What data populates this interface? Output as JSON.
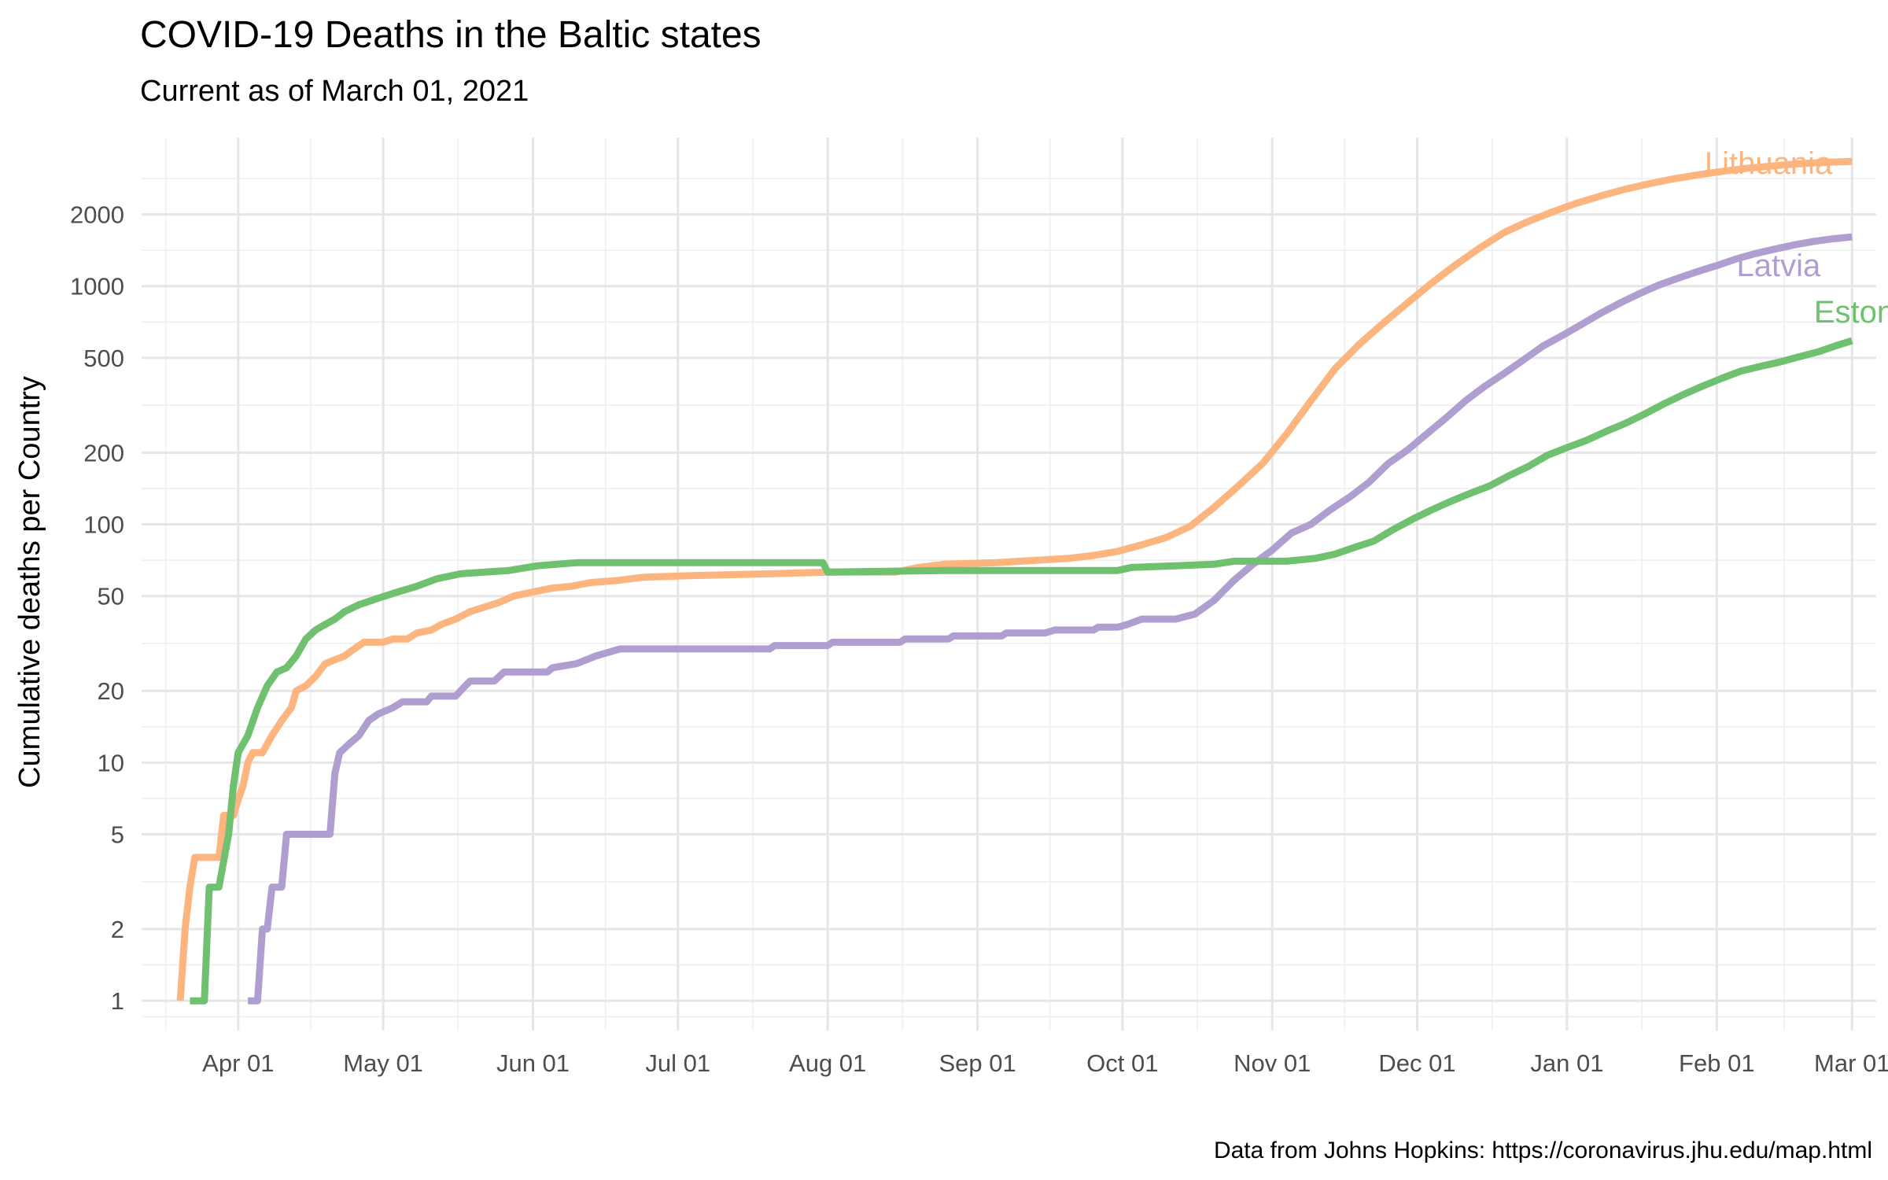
{
  "chart_data": {
    "type": "line",
    "title": "COVID-19 Deaths in the Baltic states",
    "subtitle": "Current as of March 01, 2021",
    "xlabel": "",
    "ylabel": "Cumulative deaths per Country",
    "caption": "Data from Johns Hopkins: https://coronavirus.jhu.edu/map.html",
    "y_scale": "log10",
    "ylim": [
      0.75,
      4200
    ],
    "xlim": [
      "2020-03-12",
      "2021-03-06"
    ],
    "grid": true,
    "legend": "direct labels at line ends",
    "x_ticks": [
      {
        "date": "2020-04-01",
        "label": "Apr 01"
      },
      {
        "date": "2020-05-01",
        "label": "May 01"
      },
      {
        "date": "2020-06-01",
        "label": "Jun 01"
      },
      {
        "date": "2020-07-01",
        "label": "Jul 01"
      },
      {
        "date": "2020-08-01",
        "label": "Aug 01"
      },
      {
        "date": "2020-09-01",
        "label": "Sep 01"
      },
      {
        "date": "2020-10-01",
        "label": "Oct 01"
      },
      {
        "date": "2020-11-01",
        "label": "Nov 01"
      },
      {
        "date": "2020-12-01",
        "label": "Dec 01"
      },
      {
        "date": "2021-01-01",
        "label": "Jan 01"
      },
      {
        "date": "2021-02-01",
        "label": "Feb 01"
      },
      {
        "date": "2021-03-01",
        "label": "Mar 01"
      }
    ],
    "y_ticks": [
      {
        "value": 1,
        "label": "1"
      },
      {
        "value": 2,
        "label": "2"
      },
      {
        "value": 5,
        "label": "5"
      },
      {
        "value": 10,
        "label": "10"
      },
      {
        "value": 20,
        "label": "20"
      },
      {
        "value": 50,
        "label": "50"
      },
      {
        "value": 100,
        "label": "100"
      },
      {
        "value": 200,
        "label": "200"
      },
      {
        "value": 500,
        "label": "500"
      },
      {
        "value": 1000,
        "label": "1000"
      },
      {
        "value": 2000,
        "label": "2000"
      }
    ],
    "series": [
      {
        "name": "Lithuania",
        "color": "#FDB57F",
        "points": [
          [
            "2020-03-20",
            1
          ],
          [
            "2020-03-21",
            2
          ],
          [
            "2020-03-22",
            3
          ],
          [
            "2020-03-23",
            4
          ],
          [
            "2020-03-28",
            4
          ],
          [
            "2020-03-29",
            6
          ],
          [
            "2020-03-31",
            6
          ],
          [
            "2020-04-01",
            7
          ],
          [
            "2020-04-02",
            8
          ],
          [
            "2020-04-03",
            10
          ],
          [
            "2020-04-04",
            11
          ],
          [
            "2020-04-06",
            11
          ],
          [
            "2020-04-08",
            13
          ],
          [
            "2020-04-10",
            15
          ],
          [
            "2020-04-12",
            17
          ],
          [
            "2020-04-13",
            20
          ],
          [
            "2020-04-15",
            21
          ],
          [
            "2020-04-17",
            23
          ],
          [
            "2020-04-19",
            26
          ],
          [
            "2020-04-21",
            27
          ],
          [
            "2020-04-23",
            28
          ],
          [
            "2020-04-25",
            30
          ],
          [
            "2020-04-27",
            32
          ],
          [
            "2020-05-01",
            32
          ],
          [
            "2020-05-03",
            33
          ],
          [
            "2020-05-06",
            33
          ],
          [
            "2020-05-08",
            35
          ],
          [
            "2020-05-11",
            36
          ],
          [
            "2020-05-13",
            38
          ],
          [
            "2020-05-16",
            40
          ],
          [
            "2020-05-19",
            43
          ],
          [
            "2020-05-22",
            45
          ],
          [
            "2020-05-25",
            47
          ],
          [
            "2020-05-28",
            50
          ],
          [
            "2020-06-01",
            52
          ],
          [
            "2020-06-05",
            54
          ],
          [
            "2020-06-09",
            55
          ],
          [
            "2020-06-13",
            57
          ],
          [
            "2020-06-18",
            58
          ],
          [
            "2020-06-24",
            60
          ],
          [
            "2020-07-05",
            61
          ],
          [
            "2020-07-20",
            62
          ],
          [
            "2020-08-01",
            63
          ],
          [
            "2020-08-15",
            63
          ],
          [
            "2020-08-20",
            66
          ],
          [
            "2020-08-25",
            68
          ],
          [
            "2020-09-05",
            69
          ],
          [
            "2020-09-10",
            70
          ],
          [
            "2020-09-20",
            72
          ],
          [
            "2020-09-25",
            74
          ],
          [
            "2020-09-30",
            77
          ],
          [
            "2020-10-05",
            82
          ],
          [
            "2020-10-10",
            88
          ],
          [
            "2020-10-15",
            98
          ],
          [
            "2020-10-20",
            118
          ],
          [
            "2020-10-25",
            145
          ],
          [
            "2020-10-30",
            180
          ],
          [
            "2020-11-04",
            240
          ],
          [
            "2020-11-09",
            330
          ],
          [
            "2020-11-14",
            450
          ],
          [
            "2020-11-19",
            570
          ],
          [
            "2020-11-24",
            700
          ],
          [
            "2020-11-29",
            850
          ],
          [
            "2020-12-04",
            1030
          ],
          [
            "2020-12-09",
            1230
          ],
          [
            "2020-12-14",
            1450
          ],
          [
            "2020-12-19",
            1680
          ],
          [
            "2020-12-24",
            1870
          ],
          [
            "2020-12-29",
            2050
          ],
          [
            "2021-01-03",
            2230
          ],
          [
            "2021-01-08",
            2390
          ],
          [
            "2021-01-13",
            2550
          ],
          [
            "2021-01-18",
            2690
          ],
          [
            "2021-01-23",
            2820
          ],
          [
            "2021-01-28",
            2930
          ],
          [
            "2021-02-02",
            3030
          ],
          [
            "2021-02-07",
            3120
          ],
          [
            "2021-02-12",
            3190
          ],
          [
            "2021-02-17",
            3250
          ],
          [
            "2021-02-22",
            3300
          ],
          [
            "2021-03-01",
            3340
          ]
        ]
      },
      {
        "name": "Latvia",
        "color": "#B09ED1",
        "points": [
          [
            "2020-04-03",
            1
          ],
          [
            "2020-04-05",
            1
          ],
          [
            "2020-04-06",
            2
          ],
          [
            "2020-04-07",
            2
          ],
          [
            "2020-04-08",
            3
          ],
          [
            "2020-04-10",
            3
          ],
          [
            "2020-04-11",
            5
          ],
          [
            "2020-04-20",
            5
          ],
          [
            "2020-04-21",
            9
          ],
          [
            "2020-04-22",
            11
          ],
          [
            "2020-04-24",
            12
          ],
          [
            "2020-04-26",
            13
          ],
          [
            "2020-04-28",
            15
          ],
          [
            "2020-04-30",
            16
          ],
          [
            "2020-05-03",
            17
          ],
          [
            "2020-05-05",
            18
          ],
          [
            "2020-05-10",
            18
          ],
          [
            "2020-05-11",
            19
          ],
          [
            "2020-05-16",
            19
          ],
          [
            "2020-05-18",
            21
          ],
          [
            "2020-05-19",
            22
          ],
          [
            "2020-05-24",
            22
          ],
          [
            "2020-05-26",
            24
          ],
          [
            "2020-06-04",
            24
          ],
          [
            "2020-06-05",
            25
          ],
          [
            "2020-06-10",
            26
          ],
          [
            "2020-06-14",
            28
          ],
          [
            "2020-06-19",
            30
          ],
          [
            "2020-07-20",
            30
          ],
          [
            "2020-07-21",
            31
          ],
          [
            "2020-08-01",
            31
          ],
          [
            "2020-08-02",
            32
          ],
          [
            "2020-08-16",
            32
          ],
          [
            "2020-08-17",
            33
          ],
          [
            "2020-08-26",
            33
          ],
          [
            "2020-08-27",
            34
          ],
          [
            "2020-09-06",
            34
          ],
          [
            "2020-09-07",
            35
          ],
          [
            "2020-09-15",
            35
          ],
          [
            "2020-09-17",
            36
          ],
          [
            "2020-09-25",
            36
          ],
          [
            "2020-09-26",
            37
          ],
          [
            "2020-09-30",
            37
          ],
          [
            "2020-10-02",
            38
          ],
          [
            "2020-10-05",
            40
          ],
          [
            "2020-10-12",
            40
          ],
          [
            "2020-10-16",
            42
          ],
          [
            "2020-10-20",
            48
          ],
          [
            "2020-10-24",
            58
          ],
          [
            "2020-10-28",
            68
          ],
          [
            "2020-11-01",
            78
          ],
          [
            "2020-11-05",
            92
          ],
          [
            "2020-11-09",
            100
          ],
          [
            "2020-11-13",
            115
          ],
          [
            "2020-11-17",
            130
          ],
          [
            "2020-11-21",
            150
          ],
          [
            "2020-11-25",
            180
          ],
          [
            "2020-11-29",
            205
          ],
          [
            "2020-12-03",
            240
          ],
          [
            "2020-12-07",
            280
          ],
          [
            "2020-12-11",
            330
          ],
          [
            "2020-12-15",
            380
          ],
          [
            "2020-12-19",
            430
          ],
          [
            "2020-12-23",
            490
          ],
          [
            "2020-12-27",
            560
          ],
          [
            "2020-12-31",
            620
          ],
          [
            "2021-01-04",
            690
          ],
          [
            "2021-01-08",
            770
          ],
          [
            "2021-01-12",
            850
          ],
          [
            "2021-01-16",
            930
          ],
          [
            "2021-01-20",
            1010
          ],
          [
            "2021-01-24",
            1080
          ],
          [
            "2021-01-28",
            1150
          ],
          [
            "2021-02-01",
            1220
          ],
          [
            "2021-02-05",
            1300
          ],
          [
            "2021-02-09",
            1370
          ],
          [
            "2021-02-13",
            1430
          ],
          [
            "2021-02-17",
            1490
          ],
          [
            "2021-02-21",
            1540
          ],
          [
            "2021-02-25",
            1580
          ],
          [
            "2021-03-01",
            1610
          ]
        ]
      },
      {
        "name": "Estonia",
        "color": "#6FC06F",
        "points": [
          [
            "2020-03-22",
            1
          ],
          [
            "2020-03-25",
            1
          ],
          [
            "2020-03-26",
            3
          ],
          [
            "2020-03-28",
            3
          ],
          [
            "2020-03-30",
            5
          ],
          [
            "2020-03-31",
            8
          ],
          [
            "2020-04-01",
            11
          ],
          [
            "2020-04-03",
            13
          ],
          [
            "2020-04-05",
            17
          ],
          [
            "2020-04-07",
            21
          ],
          [
            "2020-04-09",
            24
          ],
          [
            "2020-04-11",
            25
          ],
          [
            "2020-04-13",
            28
          ],
          [
            "2020-04-15",
            33
          ],
          [
            "2020-04-17",
            36
          ],
          [
            "2020-04-19",
            38
          ],
          [
            "2020-04-21",
            40
          ],
          [
            "2020-04-23",
            43
          ],
          [
            "2020-04-26",
            46
          ],
          [
            "2020-04-30",
            49
          ],
          [
            "2020-05-04",
            52
          ],
          [
            "2020-05-08",
            55
          ],
          [
            "2020-05-12",
            59
          ],
          [
            "2020-05-17",
            62
          ],
          [
            "2020-05-22",
            63
          ],
          [
            "2020-05-27",
            64
          ],
          [
            "2020-06-02",
            67
          ],
          [
            "2020-06-10",
            69
          ],
          [
            "2020-07-31",
            69
          ],
          [
            "2020-08-01",
            63
          ],
          [
            "2020-08-25",
            64
          ],
          [
            "2020-09-30",
            64
          ],
          [
            "2020-10-03",
            66
          ],
          [
            "2020-10-12",
            67
          ],
          [
            "2020-10-20",
            68
          ],
          [
            "2020-10-24",
            70
          ],
          [
            "2020-11-04",
            70
          ],
          [
            "2020-11-10",
            72
          ],
          [
            "2020-11-14",
            75
          ],
          [
            "2020-11-18",
            80
          ],
          [
            "2020-11-22",
            85
          ],
          [
            "2020-11-26",
            95
          ],
          [
            "2020-11-30",
            105
          ],
          [
            "2020-12-04",
            115
          ],
          [
            "2020-12-08",
            125
          ],
          [
            "2020-12-12",
            135
          ],
          [
            "2020-12-16",
            145
          ],
          [
            "2020-12-20",
            160
          ],
          [
            "2020-12-24",
            175
          ],
          [
            "2020-12-28",
            195
          ],
          [
            "2021-01-01",
            210
          ],
          [
            "2021-01-05",
            225
          ],
          [
            "2021-01-09",
            245
          ],
          [
            "2021-01-13",
            265
          ],
          [
            "2021-01-17",
            290
          ],
          [
            "2021-01-21",
            320
          ],
          [
            "2021-01-25",
            350
          ],
          [
            "2021-01-29",
            380
          ],
          [
            "2021-02-02",
            410
          ],
          [
            "2021-02-06",
            440
          ],
          [
            "2021-02-10",
            460
          ],
          [
            "2021-02-14",
            480
          ],
          [
            "2021-02-18",
            505
          ],
          [
            "2021-02-22",
            530
          ],
          [
            "2021-02-26",
            565
          ],
          [
            "2021-03-01",
            590
          ]
        ]
      }
    ]
  }
}
